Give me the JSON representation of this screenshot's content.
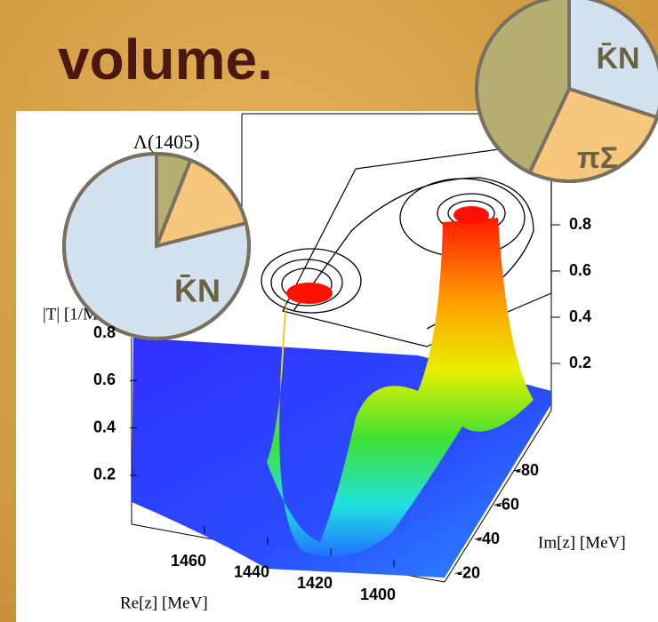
{
  "slide_title": "volume.",
  "chart_data": [
    {
      "type": "pie",
      "categories": [
        "K̄N",
        "πΣ",
        null
      ],
      "values": [
        30,
        27,
        43
      ],
      "colors": [
        "#d4e2f0",
        "#f8c77e",
        "#b5ae72"
      ]
    },
    {
      "type": "pie",
      "title": "Λ(1405)",
      "categories": [
        null,
        "πΣ",
        "K̄N"
      ],
      "values": [
        6,
        15,
        79
      ],
      "colors": [
        "#b5ae72",
        "#f8c77e",
        "#d4e2f0"
      ]
    },
    {
      "type": "surface3d",
      "xlabel": "Re[z] [MeV]",
      "ylabel": "Im[z] [MeV]",
      "zlabel": "|T| [1/MeV]",
      "xticks": [
        1460,
        1440,
        1420,
        1400
      ],
      "yticks": [
        -80,
        -60,
        -40,
        -20
      ],
      "zticks": [
        0.2,
        0.4,
        0.6,
        0.8
      ]
    }
  ]
}
